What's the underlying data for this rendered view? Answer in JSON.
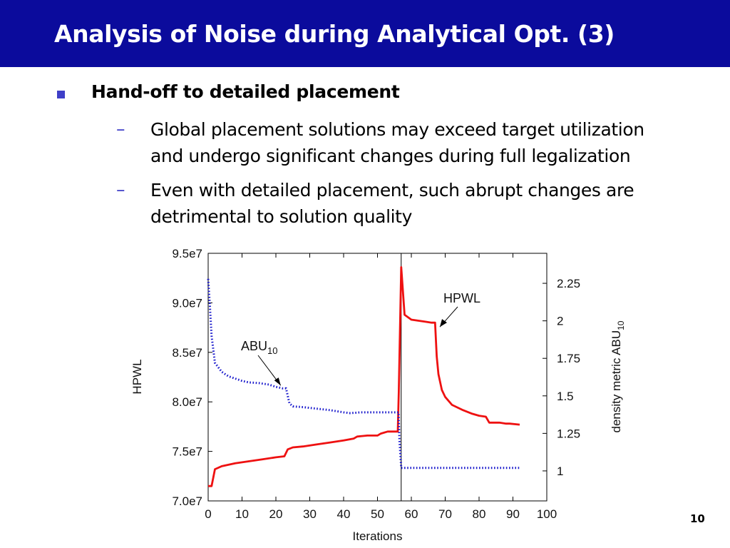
{
  "slide": {
    "title": "Analysis of Noise during Analytical Opt. (3)",
    "bullet": "Hand-off to detailed placement",
    "sub_bullets": [
      {
        "dash": "–",
        "line1": "Global placement solutions may exceed target utilization",
        "line2": "and undergo significant changes during full legalization"
      },
      {
        "dash": "–",
        "line1": "Even with detailed placement, such abrupt changes are",
        "line2": "detrimental to solution quality"
      }
    ],
    "page_number": "10"
  },
  "chart_data": {
    "type": "line",
    "xlabel": "Iterations",
    "ylabel": "HPWL",
    "y2label": "density metric ABU",
    "y2label_sub": "10",
    "xlim": [
      0,
      100
    ],
    "ylim": [
      70000000,
      95000000
    ],
    "y2lim": [
      0.8,
      2.45
    ],
    "x_ticks": [
      0,
      10,
      20,
      30,
      40,
      50,
      60,
      70,
      80,
      90,
      100
    ],
    "x_tick_labels": [
      "0",
      "10",
      "20",
      "30",
      "40",
      "50",
      "60",
      "70",
      "80",
      "90",
      "100"
    ],
    "y_ticks": [
      70000000,
      75000000,
      80000000,
      85000000,
      90000000,
      95000000
    ],
    "y_tick_labels": [
      "7.0e7",
      "7.5e7",
      "8.0e7",
      "8.5e7",
      "9.0e7",
      "9.5e7"
    ],
    "y2_ticks": [
      1,
      1.25,
      1.5,
      1.75,
      2,
      2.25
    ],
    "y2_tick_labels": [
      "1",
      "1.25",
      "1.5",
      "1.75",
      "2",
      "2.25"
    ],
    "vline_x": 57,
    "grid": false,
    "series": [
      {
        "name": "HPWL",
        "axis": "left",
        "color": "#ee1111",
        "style": "solid",
        "x": [
          0,
          1,
          2,
          4,
          8,
          12,
          16,
          20,
          22.5,
          23.5,
          25,
          28,
          32,
          36,
          40,
          43,
          44,
          47,
          50,
          51,
          53,
          55,
          56,
          56.3,
          57,
          58,
          60,
          62,
          64,
          66,
          67,
          67.5,
          68,
          69,
          70,
          72,
          75,
          78,
          80,
          82,
          83,
          86,
          88,
          89,
          92
        ],
        "values": [
          71500000,
          71500000,
          73200000,
          73500000,
          73800000,
          74000000,
          74200000,
          74400000,
          74500000,
          75200000,
          75400000,
          75500000,
          75700000,
          75900000,
          76100000,
          76300000,
          76500000,
          76600000,
          76600000,
          76800000,
          77000000,
          77000000,
          77000000,
          81000000,
          93600000,
          88800000,
          88300000,
          88200000,
          88100000,
          88000000,
          88000000,
          84600000,
          82800000,
          81200000,
          80500000,
          79700000,
          79200000,
          78800000,
          78600000,
          78500000,
          77900000,
          77900000,
          77800000,
          77800000,
          77700000
        ]
      },
      {
        "name": "ABU",
        "name_sub": "10",
        "axis": "right",
        "color": "#1a1acc",
        "style": "dotted",
        "x": [
          0,
          0.5,
          1,
          2,
          4,
          6,
          8,
          10,
          12,
          15,
          18,
          20,
          21,
          22,
          23,
          24,
          25,
          28,
          32,
          36,
          40,
          42,
          45,
          50,
          55,
          56.2,
          56.5,
          57,
          60,
          70,
          80,
          92
        ],
        "values": [
          2.28,
          2.1,
          1.9,
          1.72,
          1.66,
          1.63,
          1.615,
          1.6,
          1.59,
          1.585,
          1.575,
          1.56,
          1.555,
          1.55,
          1.55,
          1.45,
          1.43,
          1.425,
          1.415,
          1.405,
          1.39,
          1.385,
          1.39,
          1.39,
          1.39,
          1.39,
          1.2,
          1.02,
          1.02,
          1.02,
          1.02,
          1.02
        ]
      }
    ],
    "annotations": [
      {
        "text": "HPWL",
        "target_x": 68,
        "target_y": 88000000,
        "axis": "left"
      },
      {
        "text": "ABU",
        "sub": "10",
        "target_x": 21,
        "target_y": 1.56,
        "axis": "right"
      }
    ]
  }
}
